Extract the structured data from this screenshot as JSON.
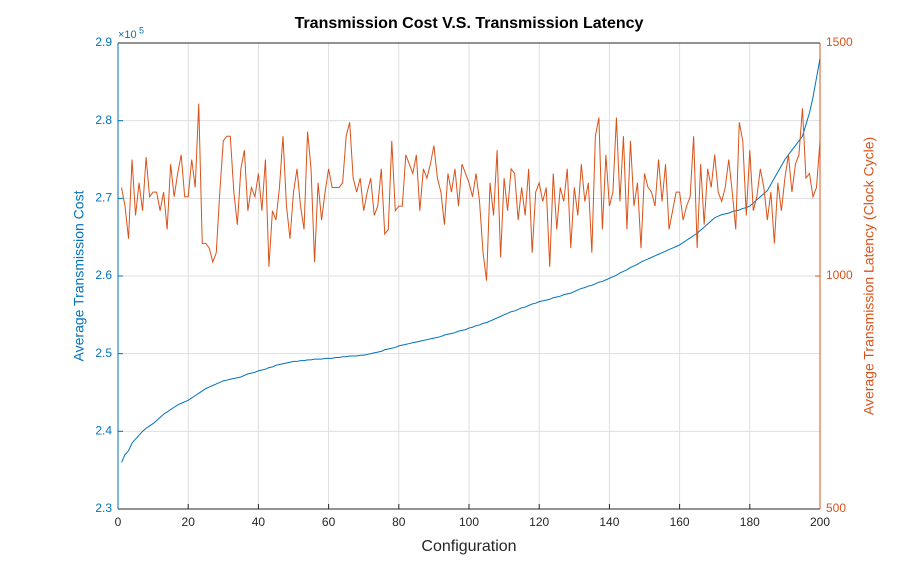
{
  "chart_data": {
    "type": "line",
    "title": "Transmission Cost V.S. Transmission Latency",
    "xlabel": "Configuration",
    "ylabel": "Average Transmission Cost",
    "y2label": "Average Transmission Latency (Clock Cycle)",
    "y_exponent_base": "×10",
    "y_exponent": "5",
    "grid": true,
    "xlim": [
      0,
      200
    ],
    "xticks": [
      0,
      20,
      40,
      60,
      80,
      100,
      120,
      140,
      160,
      180,
      200
    ],
    "ylim": [
      2.3,
      2.9
    ],
    "yticks": [
      2.3,
      2.4,
      2.5,
      2.6,
      2.7,
      2.8,
      2.9
    ],
    "y2lim": [
      500,
      1500
    ],
    "y2ticks": [
      500,
      1000,
      1500
    ],
    "x": [
      1,
      2,
      3,
      4,
      5,
      6,
      7,
      8,
      9,
      10,
      11,
      12,
      13,
      14,
      15,
      16,
      17,
      18,
      19,
      20,
      21,
      22,
      23,
      24,
      25,
      26,
      27,
      28,
      29,
      30,
      31,
      32,
      33,
      34,
      35,
      36,
      37,
      38,
      39,
      40,
      41,
      42,
      43,
      44,
      45,
      46,
      47,
      48,
      49,
      50,
      51,
      52,
      53,
      54,
      55,
      56,
      57,
      58,
      59,
      60,
      61,
      62,
      63,
      64,
      65,
      66,
      67,
      68,
      69,
      70,
      71,
      72,
      73,
      74,
      75,
      76,
      77,
      78,
      79,
      80,
      81,
      82,
      83,
      84,
      85,
      86,
      87,
      88,
      89,
      90,
      91,
      92,
      93,
      94,
      95,
      96,
      97,
      98,
      99,
      100,
      101,
      102,
      103,
      104,
      105,
      106,
      107,
      108,
      109,
      110,
      111,
      112,
      113,
      114,
      115,
      116,
      117,
      118,
      119,
      120,
      121,
      122,
      123,
      124,
      125,
      126,
      127,
      128,
      129,
      130,
      131,
      132,
      133,
      134,
      135,
      136,
      137,
      138,
      139,
      140,
      141,
      142,
      143,
      144,
      145,
      146,
      147,
      148,
      149,
      150,
      151,
      152,
      153,
      154,
      155,
      156,
      157,
      158,
      159,
      160,
      161,
      162,
      163,
      164,
      165,
      166,
      167,
      168,
      169,
      170,
      171,
      172,
      173,
      174,
      175,
      176,
      177,
      178,
      179,
      180,
      181,
      182,
      183,
      184,
      185,
      186,
      187,
      188,
      189,
      190,
      191,
      192,
      193,
      194,
      195,
      196,
      197,
      198,
      199,
      200
    ],
    "series": [
      {
        "color": "#0072BD",
        "axis": "y",
        "values": [
          2.36,
          2.37,
          2.375,
          2.385,
          2.39,
          2.395,
          2.4,
          2.404,
          2.407,
          2.41,
          2.414,
          2.418,
          2.422,
          2.425,
          2.428,
          2.431,
          2.434,
          2.436,
          2.438,
          2.44,
          2.443,
          2.446,
          2.449,
          2.452,
          2.455,
          2.457,
          2.459,
          2.461,
          2.463,
          2.465,
          2.466,
          2.467,
          2.468,
          2.469,
          2.47,
          2.472,
          2.474,
          2.475,
          2.476,
          2.478,
          2.479,
          2.48,
          2.482,
          2.483,
          2.485,
          2.486,
          2.487,
          2.488,
          2.489,
          2.49,
          2.49,
          2.491,
          2.491,
          2.492,
          2.492,
          2.493,
          2.493,
          2.493,
          2.494,
          2.494,
          2.494,
          2.495,
          2.495,
          2.496,
          2.496,
          2.497,
          2.497,
          2.497,
          2.498,
          2.498,
          2.499,
          2.5,
          2.501,
          2.502,
          2.503,
          2.505,
          2.506,
          2.507,
          2.508,
          2.51,
          2.511,
          2.512,
          2.513,
          2.514,
          2.515,
          2.516,
          2.517,
          2.518,
          2.519,
          2.52,
          2.521,
          2.522,
          2.524,
          2.525,
          2.526,
          2.527,
          2.529,
          2.53,
          2.531,
          2.533,
          2.534,
          2.536,
          2.537,
          2.539,
          2.54,
          2.542,
          2.544,
          2.546,
          2.548,
          2.55,
          2.552,
          2.554,
          2.555,
          2.557,
          2.559,
          2.56,
          2.562,
          2.564,
          2.565,
          2.567,
          2.568,
          2.569,
          2.57,
          2.572,
          2.573,
          2.574,
          2.576,
          2.577,
          2.578,
          2.58,
          2.582,
          2.584,
          2.585,
          2.587,
          2.588,
          2.59,
          2.592,
          2.593,
          2.595,
          2.597,
          2.599,
          2.601,
          2.604,
          2.606,
          2.608,
          2.611,
          2.613,
          2.615,
          2.618,
          2.62,
          2.622,
          2.624,
          2.626,
          2.628,
          2.63,
          2.632,
          2.634,
          2.636,
          2.638,
          2.64,
          2.643,
          2.646,
          2.649,
          2.652,
          2.655,
          2.659,
          2.663,
          2.667,
          2.671,
          2.675,
          2.677,
          2.679,
          2.68,
          2.681,
          2.683,
          2.684,
          2.685,
          2.687,
          2.688,
          2.69,
          2.694,
          2.698,
          2.702,
          2.706,
          2.71,
          2.718,
          2.726,
          2.734,
          2.742,
          2.75,
          2.756,
          2.762,
          2.768,
          2.774,
          2.78,
          2.795,
          2.81,
          2.83,
          2.855,
          2.88
        ]
      },
      {
        "color": "#D95319",
        "axis": "y2",
        "values": [
          1190,
          1150,
          1080,
          1250,
          1130,
          1200,
          1140,
          1255,
          1170,
          1180,
          1180,
          1140,
          1180,
          1100,
          1240,
          1170,
          1220,
          1260,
          1170,
          1170,
          1250,
          1190,
          1370,
          1070,
          1070,
          1060,
          1030,
          1050,
          1180,
          1290,
          1300,
          1300,
          1180,
          1110,
          1230,
          1270,
          1140,
          1190,
          1170,
          1220,
          1140,
          1250,
          1020,
          1140,
          1120,
          1190,
          1300,
          1150,
          1080,
          1180,
          1230,
          1150,
          1100,
          1310,
          1230,
          1030,
          1200,
          1120,
          1180,
          1230,
          1190,
          1190,
          1190,
          1200,
          1300,
          1330,
          1210,
          1180,
          1210,
          1140,
          1180,
          1210,
          1130,
          1150,
          1230,
          1090,
          1100,
          1290,
          1140,
          1150,
          1150,
          1260,
          1240,
          1220,
          1260,
          1140,
          1230,
          1210,
          1240,
          1280,
          1210,
          1180,
          1110,
          1220,
          1180,
          1230,
          1150,
          1240,
          1220,
          1200,
          1170,
          1220,
          1160,
          1050,
          990,
          1200,
          1130,
          1270,
          1040,
          1210,
          1140,
          1230,
          1220,
          1120,
          1190,
          1130,
          1230,
          1050,
          1180,
          1200,
          1160,
          1190,
          1020,
          1220,
          1100,
          1190,
          1160,
          1230,
          1060,
          1190,
          1130,
          1240,
          1160,
          1200,
          1050,
          1300,
          1340,
          1100,
          1260,
          1150,
          1180,
          1340,
          1160,
          1300,
          1100,
          1290,
          1150,
          1200,
          1060,
          1220,
          1190,
          1180,
          1150,
          1250,
          1160,
          1240,
          1100,
          1140,
          1180,
          1180,
          1120,
          1150,
          1170,
          1300,
          1060,
          1240,
          1110,
          1230,
          1190,
          1260,
          1180,
          1160,
          1190,
          1250,
          1180,
          1100,
          1330,
          1290,
          1130,
          1270,
          1140,
          1170,
          1230,
          1190,
          1120,
          1180,
          1070,
          1200,
          1140,
          1210,
          1260,
          1180,
          1240,
          1260,
          1360,
          1210,
          1220,
          1170,
          1190,
          1290
        ]
      }
    ]
  }
}
